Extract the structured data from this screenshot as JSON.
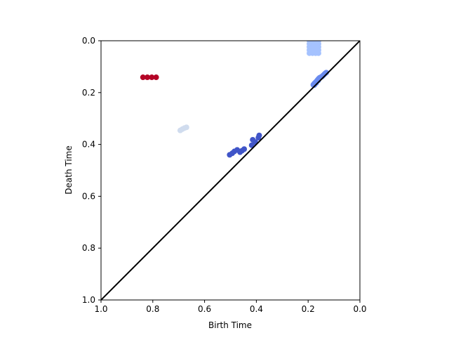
{
  "chart_data": {
    "type": "scatter",
    "title": "",
    "xlabel": "Birth Time",
    "ylabel": "Death Time",
    "xlim": [
      1.0,
      0.0
    ],
    "ylim": [
      1.0,
      0.0
    ],
    "x_reversed": true,
    "y_reversed": true,
    "x_ticks": [
      "1.0",
      "0.8",
      "0.6",
      "0.4",
      "0.2",
      "0.0"
    ],
    "y_ticks": [
      "0.0",
      "0.2",
      "0.4",
      "0.6",
      "0.8",
      "1.0"
    ],
    "grid": false,
    "legend": "none",
    "diagonal": {
      "from": [
        1.0,
        1.0
      ],
      "to": [
        0.0,
        0.0
      ],
      "color": "#000000"
    },
    "series": [
      {
        "color": "#b40426",
        "points": [
          [
            0.838,
            0.141
          ],
          [
            0.821,
            0.141
          ],
          [
            0.804,
            0.141
          ],
          [
            0.787,
            0.141
          ]
        ]
      },
      {
        "color": "#d0dcee",
        "points": [
          [
            0.694,
            0.346
          ],
          [
            0.686,
            0.341
          ],
          [
            0.678,
            0.337
          ],
          [
            0.67,
            0.334
          ]
        ]
      },
      {
        "color": "#4055c8",
        "points": [
          [
            0.503,
            0.44
          ],
          [
            0.493,
            0.434
          ],
          [
            0.485,
            0.427
          ],
          [
            0.474,
            0.421
          ],
          [
            0.463,
            0.43
          ],
          [
            0.455,
            0.424
          ],
          [
            0.447,
            0.418
          ],
          [
            0.418,
            0.403
          ],
          [
            0.414,
            0.382
          ],
          [
            0.404,
            0.391
          ],
          [
            0.392,
            0.374
          ],
          [
            0.389,
            0.365
          ]
        ]
      },
      {
        "color": "#6a8bef",
        "points": [
          [
            0.18,
            0.17
          ],
          [
            0.176,
            0.165
          ],
          [
            0.172,
            0.161
          ],
          [
            0.168,
            0.157
          ],
          [
            0.164,
            0.152
          ],
          [
            0.16,
            0.147
          ],
          [
            0.156,
            0.143
          ],
          [
            0.15,
            0.14
          ],
          [
            0.146,
            0.138
          ],
          [
            0.142,
            0.134
          ],
          [
            0.138,
            0.13
          ],
          [
            0.134,
            0.126
          ],
          [
            0.13,
            0.123
          ],
          [
            0.176,
            0.171
          ],
          [
            0.169,
            0.163
          ],
          [
            0.161,
            0.153
          ]
        ]
      },
      {
        "color": "#a5c2fe",
        "points": [
          [
            0.195,
            0.0
          ],
          [
            0.195,
            0.012
          ],
          [
            0.195,
            0.024
          ],
          [
            0.195,
            0.036
          ],
          [
            0.195,
            0.048
          ],
          [
            0.183,
            0.0
          ],
          [
            0.183,
            0.012
          ],
          [
            0.183,
            0.024
          ],
          [
            0.183,
            0.036
          ],
          [
            0.183,
            0.048
          ],
          [
            0.171,
            0.0
          ],
          [
            0.171,
            0.012
          ],
          [
            0.171,
            0.024
          ],
          [
            0.171,
            0.036
          ],
          [
            0.171,
            0.048
          ],
          [
            0.16,
            0.0
          ],
          [
            0.16,
            0.012
          ],
          [
            0.16,
            0.024
          ],
          [
            0.16,
            0.036
          ],
          [
            0.16,
            0.048
          ],
          [
            0.19,
            0.006
          ],
          [
            0.178,
            0.018
          ],
          [
            0.166,
            0.03
          ],
          [
            0.186,
            0.042
          ],
          [
            0.164,
            0.008
          ]
        ]
      }
    ]
  }
}
